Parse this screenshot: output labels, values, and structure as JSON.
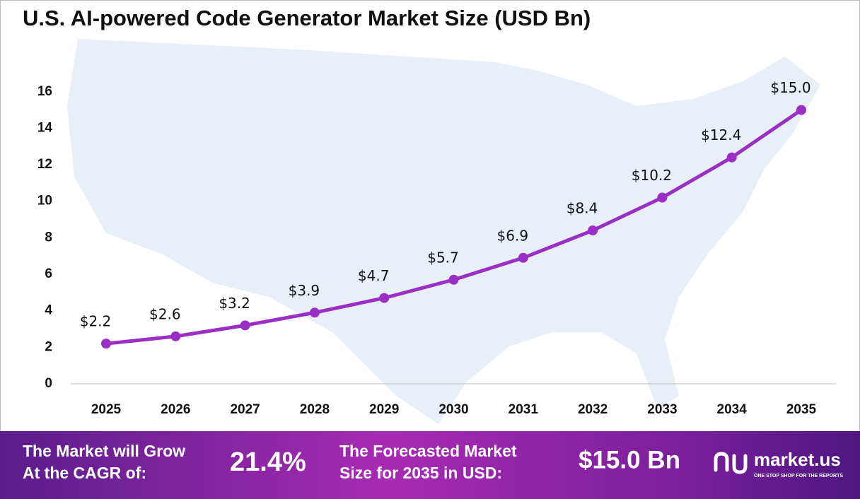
{
  "chart_data": {
    "type": "line",
    "title": "U.S. AI-powered Code Generator Market Size (USD Bn)",
    "categories": [
      "2025",
      "2026",
      "2027",
      "2028",
      "2029",
      "2030",
      "2031",
      "2032",
      "2033",
      "2034",
      "2035"
    ],
    "values": [
      2.2,
      2.6,
      3.2,
      3.9,
      4.7,
      5.7,
      6.9,
      8.4,
      10.2,
      12.4,
      15.0
    ],
    "value_labels": [
      "$2.2",
      "$2.6",
      "$3.2",
      "$3.9",
      "$4.7",
      "$5.7",
      "$6.9",
      "$8.4",
      "$10.2",
      "$12.4",
      "$15.0"
    ],
    "color": "#9a2fc6",
    "ylim": [
      0,
      17.5
    ],
    "yticks": [
      0,
      2,
      4,
      6,
      8,
      10,
      12,
      14,
      16
    ],
    "grid": false
  },
  "footer": {
    "cagr_text": [
      "The Market will Grow",
      "At the CAGR of:"
    ],
    "cagr_value": "21.4%",
    "forecast_text": [
      "The Forecasted Market",
      "Size for 2035 in USD:"
    ],
    "forecast_value": "$15.0 Bn",
    "brand": "market.us",
    "tagline": "ONE STOP SHOP FOR THE REPORTS"
  }
}
